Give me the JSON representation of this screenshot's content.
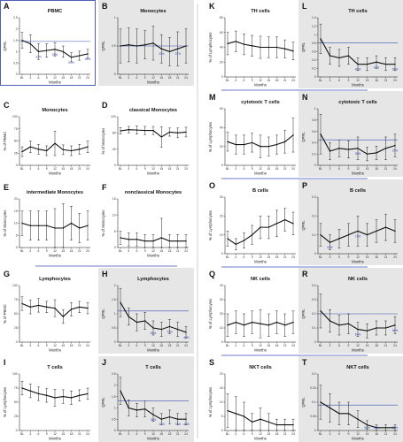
{
  "layout_colors": {
    "shade": "#e6e6e6",
    "line": "#111111",
    "ref_line": "#3b4fb0",
    "annotation": "#2c3ea6",
    "divider": "#3b4fb0"
  },
  "x_tick_labels": [
    "BL",
    "3",
    "6",
    "9",
    "12",
    "15",
    "18",
    "21",
    "24"
  ],
  "chart_data": [
    {
      "id": "A",
      "type": "line",
      "title": "PBMC",
      "ylabel": "QPRL",
      "xlabel": "Months",
      "x": [
        "BL",
        "3",
        "6",
        "9",
        "12",
        "15",
        "18",
        "21",
        "24"
      ],
      "values": [
        1.5,
        1.35,
        1.0,
        1.05,
        1.1,
        1.0,
        0.75,
        0.82,
        0.9
      ],
      "err": [
        0.35,
        0.4,
        0.35,
        0.3,
        0.3,
        0.25,
        0.2,
        0.2,
        0.2
      ],
      "ylim": [
        0,
        2.5
      ],
      "yticks": [
        0,
        0.5,
        1.0,
        1.5,
        2.0,
        2.5
      ],
      "ref": 1.45,
      "shaded": false,
      "boxed": true,
      "annotations": [
        {
          "i": 2,
          "t": "31%"
        },
        {
          "i": 4,
          "t": "26%"
        },
        {
          "i": 6,
          "t": "51%"
        },
        {
          "i": 8,
          "t": "49%"
        }
      ]
    },
    {
      "id": "B",
      "type": "line",
      "title": "Monocytes",
      "ylabel": "QPRL",
      "xlabel": "Months",
      "x": [
        "BL",
        "3",
        "6",
        "9",
        "12",
        "15",
        "18",
        "21",
        "24"
      ],
      "values": [
        0.5,
        0.52,
        0.5,
        0.52,
        0.55,
        0.45,
        0.4,
        0.45,
        0.5
      ],
      "err": [
        0.3,
        0.3,
        0.3,
        0.25,
        0.3,
        0.25,
        0.25,
        0.3,
        0.3
      ],
      "ylim": [
        0,
        1.0
      ],
      "yticks": [
        0,
        0.5,
        1.0
      ],
      "ref": 0.5,
      "shaded": true,
      "boxed": false,
      "annotations": [
        {
          "i": 5,
          "t": "20%"
        },
        {
          "i": 7,
          "t": "20%"
        }
      ]
    },
    {
      "id": "C",
      "type": "line",
      "title": "Monocytes",
      "ylabel": "% of PBMC",
      "xlabel": "Months",
      "x": [
        "BL",
        "3",
        "6",
        "9",
        "12",
        "15",
        "18",
        "21",
        "24"
      ],
      "values": [
        28,
        38,
        33,
        30,
        45,
        32,
        30,
        33,
        38
      ],
      "err": [
        10,
        12,
        10,
        10,
        25,
        10,
        10,
        10,
        12
      ],
      "ylim": [
        0,
        100
      ],
      "yticks": [
        0,
        25,
        50,
        75,
        100
      ],
      "ref": null,
      "shaded": false,
      "boxed": false,
      "annotations": []
    },
    {
      "id": "D",
      "type": "line",
      "title": "classical Monocytes",
      "ylabel": "% of Monocytes",
      "xlabel": "Months",
      "x": [
        "BL",
        "3",
        "6",
        "9",
        "12",
        "15",
        "18",
        "21",
        "24"
      ],
      "values": [
        85,
        88,
        87,
        86,
        86,
        70,
        82,
        80,
        82
      ],
      "err": [
        8,
        8,
        10,
        10,
        10,
        25,
        10,
        12,
        12
      ],
      "ylim": [
        0,
        120
      ],
      "yticks": [
        0,
        40,
        80,
        120
      ],
      "ref": null,
      "shaded": false,
      "boxed": false,
      "annotations": []
    },
    {
      "id": "E",
      "type": "line",
      "title": "intermediate Monocytes",
      "ylabel": "% of Monocytes",
      "xlabel": "Months",
      "x": [
        "BL",
        "3",
        "6",
        "9",
        "12",
        "15",
        "18",
        "21",
        "24"
      ],
      "values": [
        10,
        9,
        9,
        9,
        8,
        8,
        10,
        8,
        9
      ],
      "err": [
        5,
        6,
        6,
        6,
        8,
        10,
        7,
        6,
        6
      ],
      "ylim": [
        0,
        20
      ],
      "yticks": [
        0,
        5,
        10,
        15,
        20
      ],
      "ref": null,
      "shaded": false,
      "boxed": false,
      "annotations": []
    },
    {
      "id": "F",
      "type": "line",
      "title": "nonclassical Monocytes",
      "ylabel": "% of Monocytes",
      "xlabel": "Months",
      "x": [
        "BL",
        "3",
        "6",
        "9",
        "12",
        "15",
        "18",
        "21",
        "24"
      ],
      "values": [
        3,
        2.5,
        2.5,
        2,
        2,
        3,
        2,
        2,
        2
      ],
      "err": [
        2,
        2,
        2,
        2,
        2,
        6,
        2,
        2,
        2
      ],
      "ylim": [
        0,
        15
      ],
      "yticks": [
        0,
        5,
        10,
        15
      ],
      "ref": null,
      "shaded": false,
      "boxed": false,
      "annotations": []
    },
    {
      "id": "G",
      "type": "line",
      "title": "Lymphocytes",
      "ylabel": "% of PBMC",
      "xlabel": "Months",
      "x": [
        "BL",
        "3",
        "6",
        "9",
        "12",
        "15",
        "18",
        "21",
        "24"
      ],
      "values": [
        68,
        62,
        65,
        62,
        60,
        45,
        58,
        62,
        60
      ],
      "err": [
        12,
        12,
        12,
        10,
        15,
        12,
        12,
        10,
        10
      ],
      "ylim": [
        0,
        100
      ],
      "yticks": [
        0,
        25,
        50,
        75,
        100
      ],
      "ref": null,
      "shaded": false,
      "boxed": false,
      "annotations": []
    },
    {
      "id": "H",
      "type": "line",
      "title": "Lymphocytes",
      "ylabel": "QPRL",
      "xlabel": "Months",
      "x": [
        "BL",
        "3",
        "6",
        "9",
        "12",
        "15",
        "18",
        "21",
        "24"
      ],
      "values": [
        1.4,
        0.9,
        0.7,
        0.75,
        0.5,
        0.45,
        0.55,
        0.45,
        0.35
      ],
      "err": [
        0.5,
        0.3,
        0.3,
        0.3,
        0.25,
        0.25,
        0.25,
        0.25,
        0.2
      ],
      "ylim": [
        0,
        2.0
      ],
      "yticks": [
        0,
        0.5,
        1.0,
        1.5,
        2.0
      ],
      "ref": 1.1,
      "shaded": true,
      "boxed": false,
      "annotations": [
        {
          "i": 4,
          "t": "60%"
        },
        {
          "i": 6,
          "t": "72%"
        },
        {
          "i": 8,
          "t": "-46%"
        }
      ]
    },
    {
      "id": "I",
      "type": "line",
      "title": "T cells",
      "ylabel": "% of Lymphocytes",
      "xlabel": "Months",
      "x": [
        "BL",
        "3",
        "6",
        "9",
        "12",
        "15",
        "18",
        "21",
        "24"
      ],
      "values": [
        75,
        70,
        65,
        62,
        58,
        60,
        58,
        62,
        65
      ],
      "err": [
        12,
        12,
        12,
        12,
        15,
        12,
        12,
        10,
        10
      ],
      "ylim": [
        0,
        100
      ],
      "yticks": [
        0,
        25,
        50,
        75,
        100
      ],
      "ref": null,
      "shaded": false,
      "boxed": false,
      "annotations": []
    },
    {
      "id": "J",
      "type": "line",
      "title": "T cells",
      "ylabel": "QPRL",
      "xlabel": "Months",
      "x": [
        "BL",
        "3",
        "6",
        "9",
        "12",
        "15",
        "18",
        "21",
        "24"
      ],
      "values": [
        1.75,
        1.0,
        0.9,
        0.95,
        0.7,
        0.5,
        0.6,
        0.5,
        0.5
      ],
      "err": [
        0.6,
        0.35,
        0.3,
        0.35,
        0.3,
        0.25,
        0.3,
        0.25,
        0.25
      ],
      "ylim": [
        0,
        2.5
      ],
      "yticks": [
        0,
        0.5,
        1.0,
        1.5,
        2.0,
        2.5
      ],
      "ref": 1.3,
      "shaded": true,
      "boxed": false,
      "annotations": [
        {
          "i": 4,
          "t": "36%"
        },
        {
          "i": 5,
          "t": "-72%"
        },
        {
          "i": 7,
          "t": "71%"
        },
        {
          "i": 8,
          "t": "-46%"
        }
      ]
    },
    {
      "id": "K",
      "type": "line",
      "title": "TH cells",
      "ylabel": "% of Lymphocytes",
      "xlabel": "Months",
      "x": [
        "BL",
        "3",
        "6",
        "9",
        "12",
        "15",
        "18",
        "21",
        "24"
      ],
      "values": [
        45,
        48,
        44,
        42,
        40,
        40,
        40,
        38,
        35
      ],
      "err": [
        15,
        14,
        14,
        14,
        15,
        14,
        14,
        12,
        12
      ],
      "ylim": [
        0,
        80
      ],
      "yticks": [
        0,
        20,
        40,
        60,
        80
      ],
      "ref": null,
      "shaded": false,
      "boxed": false,
      "annotations": []
    },
    {
      "id": "L",
      "type": "line",
      "title": "TH cells",
      "ylabel": "QPRL",
      "xlabel": "Months",
      "x": [
        "BL",
        "3",
        "6",
        "9",
        "12",
        "15",
        "18",
        "21",
        "24"
      ],
      "values": [
        0.9,
        0.5,
        0.45,
        0.5,
        0.3,
        0.3,
        0.35,
        0.3,
        0.3
      ],
      "err": [
        0.35,
        0.2,
        0.2,
        0.2,
        0.15,
        0.15,
        0.15,
        0.15,
        0.15
      ],
      "ylim": [
        0,
        1.4
      ],
      "yticks": [
        0,
        0.2,
        0.4,
        0.6,
        0.8,
        1.0,
        1.2,
        1.4
      ],
      "ref": 0.8,
      "shaded": true,
      "boxed": false,
      "annotations": [
        {
          "i": 4,
          "t": "40%"
        },
        {
          "i": 6,
          "t": "47%"
        },
        {
          "i": 8,
          "t": "65%"
        }
      ]
    },
    {
      "id": "M",
      "type": "line",
      "title": "cytotoxic T cells",
      "ylabel": "% of Lymphocytes",
      "xlabel": "Months",
      "x": [
        "BL",
        "3",
        "6",
        "9",
        "12",
        "15",
        "18",
        "21",
        "24"
      ],
      "values": [
        25,
        22,
        22,
        24,
        20,
        20,
        22,
        25,
        32
      ],
      "err": [
        10,
        10,
        10,
        10,
        12,
        10,
        10,
        12,
        18
      ],
      "ylim": [
        0,
        60
      ],
      "yticks": [
        0,
        20,
        40,
        60
      ],
      "ref": null,
      "shaded": false,
      "boxed": false,
      "annotations": []
    },
    {
      "id": "N",
      "type": "line",
      "title": "cytotoxic T cells",
      "ylabel": "QPRL",
      "xlabel": "Months",
      "x": [
        "BL",
        "3",
        "6",
        "9",
        "12",
        "15",
        "18",
        "21",
        "24"
      ],
      "values": [
        0.55,
        0.25,
        0.3,
        0.28,
        0.3,
        0.2,
        0.22,
        0.3,
        0.35
      ],
      "err": [
        0.35,
        0.15,
        0.15,
        0.15,
        0.2,
        0.12,
        0.12,
        0.2,
        0.2
      ],
      "ylim": [
        0,
        1.0
      ],
      "yticks": [
        0,
        0.2,
        0.4,
        0.6,
        0.8,
        1.0
      ],
      "ref": 0.45,
      "shaded": true,
      "boxed": false,
      "annotations": [
        {
          "i": 4,
          "t": "35%"
        },
        {
          "i": 8,
          "t": "37%"
        }
      ]
    },
    {
      "id": "O",
      "type": "line",
      "title": "B cells",
      "ylabel": "% of Lymphocytes",
      "xlabel": "Months",
      "x": [
        "BL",
        "3",
        "6",
        "9",
        "12",
        "15",
        "18",
        "21",
        "24"
      ],
      "values": [
        8,
        5,
        7,
        10,
        14,
        14,
        16,
        18,
        16
      ],
      "err": [
        4,
        3,
        4,
        5,
        6,
        6,
        7,
        6,
        6
      ],
      "ylim": [
        0,
        30
      ],
      "yticks": [
        0,
        10,
        20,
        30
      ],
      "ref": null,
      "shaded": false,
      "boxed": false,
      "annotations": []
    },
    {
      "id": "P",
      "type": "line",
      "title": "B cells",
      "ylabel": "QPRL",
      "xlabel": "Months",
      "x": [
        "BL",
        "3",
        "6",
        "9",
        "12",
        "15",
        "18",
        "21",
        "24"
      ],
      "values": [
        0.1,
        0.06,
        0.08,
        0.1,
        0.12,
        0.1,
        0.12,
        0.14,
        0.12
      ],
      "err": [
        0.06,
        0.04,
        0.05,
        0.06,
        0.08,
        0.06,
        0.06,
        0.07,
        0.06
      ],
      "ylim": [
        0,
        0.3
      ],
      "yticks": [
        0,
        0.1,
        0.2,
        0.3
      ],
      "ref": null,
      "shaded": true,
      "boxed": false,
      "annotations": [
        {
          "i": 1,
          "t": "52%"
        },
        {
          "i": 4,
          "t": "72%"
        }
      ]
    },
    {
      "id": "Q",
      "type": "line",
      "title": "NK cells",
      "ylabel": "% of Lymphocytes",
      "xlabel": "Months",
      "x": [
        "BL",
        "3",
        "6",
        "9",
        "12",
        "15",
        "18",
        "21",
        "24"
      ],
      "values": [
        12,
        14,
        12,
        14,
        13,
        12,
        14,
        12,
        14
      ],
      "err": [
        8,
        8,
        8,
        8,
        10,
        8,
        8,
        8,
        8
      ],
      "ylim": [
        0,
        40
      ],
      "yticks": [
        0,
        10,
        20,
        30,
        40
      ],
      "ref": null,
      "shaded": false,
      "boxed": false,
      "annotations": []
    },
    {
      "id": "R",
      "type": "line",
      "title": "NK cells",
      "ylabel": "QPRL",
      "xlabel": "Months",
      "x": [
        "BL",
        "3",
        "6",
        "9",
        "12",
        "15",
        "18",
        "21",
        "24"
      ],
      "values": [
        0.22,
        0.15,
        0.12,
        0.13,
        0.09,
        0.08,
        0.1,
        0.1,
        0.12
      ],
      "err": [
        0.12,
        0.08,
        0.07,
        0.07,
        0.05,
        0.05,
        0.05,
        0.05,
        0.06
      ],
      "ylim": [
        0,
        0.4
      ],
      "yticks": [
        0,
        0.1,
        0.2,
        0.3,
        0.4
      ],
      "ref": 0.2,
      "shaded": true,
      "boxed": false,
      "annotations": [
        {
          "i": 4,
          "t": "54%"
        },
        {
          "i": 8,
          "t": "66%"
        }
      ]
    },
    {
      "id": "S",
      "type": "line",
      "title": "NKT cells",
      "ylabel": "% of Lymphocytes",
      "xlabel": "Months",
      "x": [
        "BL",
        "3",
        "6",
        "9",
        "12",
        "15",
        "18",
        "21",
        "24"
      ],
      "values": [
        7,
        6,
        5,
        3,
        4,
        3,
        2,
        2,
        2
      ],
      "err": [
        6,
        6,
        5,
        3,
        4,
        3,
        2,
        2,
        2
      ],
      "ylim": [
        0,
        20
      ],
      "yticks": [
        0,
        5,
        10,
        15,
        20
      ],
      "ref": null,
      "shaded": false,
      "boxed": false,
      "annotations": []
    },
    {
      "id": "T",
      "type": "line",
      "title": "NKT cells",
      "ylabel": "QPRL",
      "xlabel": "Months",
      "x": [
        "BL",
        "3",
        "6",
        "9",
        "12",
        "15",
        "18",
        "21",
        "24"
      ],
      "values": [
        0.1,
        0.08,
        0.06,
        0.06,
        0.04,
        0.02,
        0.01,
        0.01,
        0.01
      ],
      "err": [
        0.06,
        0.05,
        0.04,
        0.04,
        0.03,
        0.015,
        0.01,
        0.01,
        0.01
      ],
      "ylim": [
        0,
        0.2
      ],
      "yticks": [
        0,
        0.05,
        0.1,
        0.15,
        0.2
      ],
      "ref": 0.09,
      "shaded": true,
      "boxed": false,
      "annotations": [
        {
          "i": 5,
          "t": "56%"
        },
        {
          "i": 6,
          "t": "97%"
        },
        {
          "i": 8,
          "t": "99%"
        }
      ]
    }
  ]
}
